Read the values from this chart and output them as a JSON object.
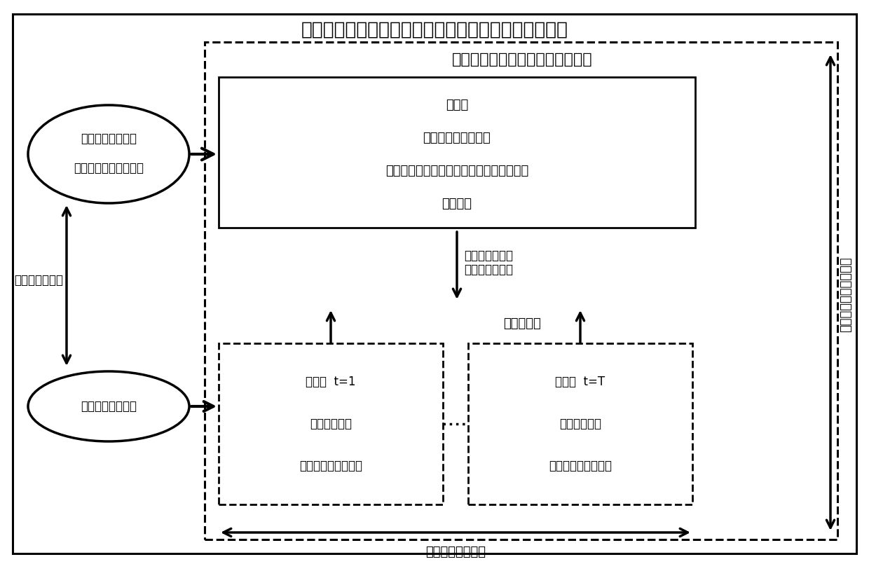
{
  "title": "计及无功设备动作次数的跨区直流联络线功率优化模型",
  "outer_box_color": "#000000",
  "bg_color": "#ffffff",
  "dashed_outer_label": "安全约束直流联络线功率优化模型",
  "main_problem_lines": [
    "主问题",
    "直流联络线运行约束",
    "功率平衡、机组爬坡、系统备用等常规约束",
    "风电约束"
  ],
  "sub1_lines": [
    "子问题  t=1",
    "交流潮流约束",
    "换流站稳态运行约束"
  ],
  "subT_lines": [
    "子问题  t=T",
    "交流潮流约束",
    "换流站稳态运行约束"
  ],
  "ellipse1_lines": [
    "无功设备连接约束",
    "无功设备动作次数约束"
  ],
  "ellipse2_lines": [
    "无功设备连接约束"
  ],
  "arrow_label_down": "火电、风电出力\n直流联络线功率",
  "feasibility_label": "可行性约束",
  "optimal_label": "无功设备最优解",
  "time_label": "全时段时间维协调优化",
  "space_label": "单时段空间维优化"
}
